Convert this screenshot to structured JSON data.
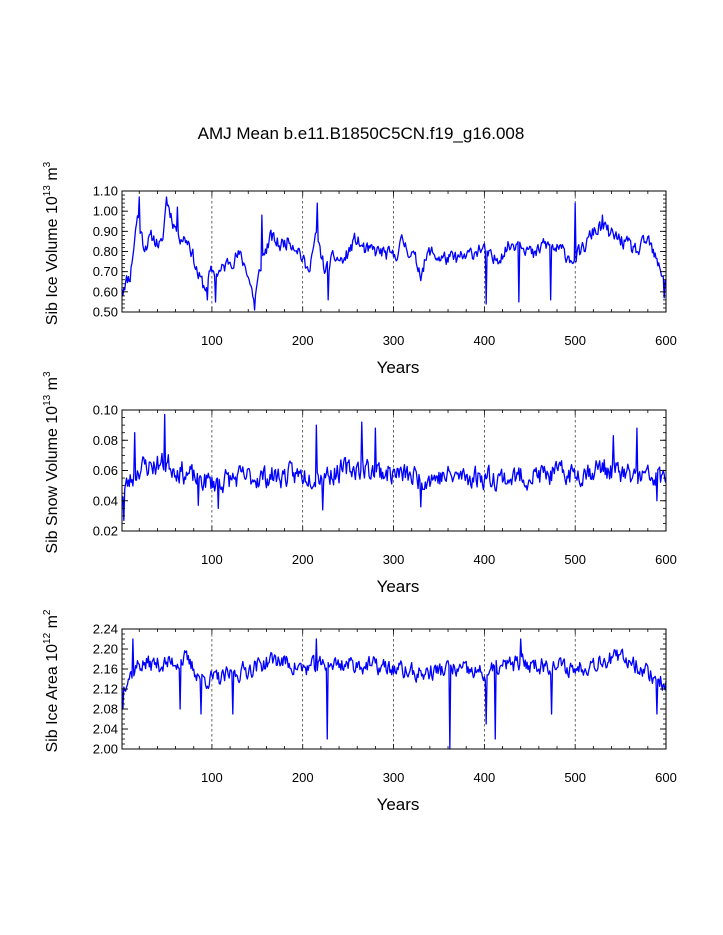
{
  "title": "AMJ Mean b.e11.B1850C5CN.f19_g16.008",
  "chart_data": [
    {
      "type": "line",
      "title": "AMJ Mean b.e11.B1850C5CN.f19_g16.008",
      "xlabel": "Years",
      "ylabel_main": "Sib Ice Volume 10",
      "ylabel_exp": "13",
      "ylabel_unit": "m",
      "ylabel_unit_exp": "3",
      "xlim": [
        1,
        600
      ],
      "ylim": [
        0.5,
        1.1
      ],
      "x_ticks": [
        100,
        200,
        300,
        400,
        500,
        600
      ],
      "y_ticks": [
        0.5,
        0.6,
        0.7,
        0.8,
        0.9,
        1.0,
        1.1
      ],
      "y_tick_labels": [
        "0.50",
        "0.60",
        "0.70",
        "0.80",
        "0.90",
        "1.00",
        "1.10"
      ],
      "y_minor_step": 0.02,
      "series_name": "Sib Ice Volume",
      "color": "#0000ff",
      "anchors": [
        [
          1,
          0.63
        ],
        [
          10,
          0.68
        ],
        [
          18,
          0.98
        ],
        [
          25,
          0.83
        ],
        [
          35,
          0.87
        ],
        [
          45,
          0.82
        ],
        [
          50,
          1.06
        ],
        [
          58,
          0.94
        ],
        [
          65,
          0.88
        ],
        [
          75,
          0.85
        ],
        [
          85,
          0.68
        ],
        [
          92,
          0.62
        ],
        [
          100,
          0.7
        ],
        [
          110,
          0.7
        ],
        [
          120,
          0.76
        ],
        [
          130,
          0.78
        ],
        [
          138,
          0.72
        ],
        [
          147,
          0.55
        ],
        [
          155,
          0.76
        ],
        [
          165,
          0.87
        ],
        [
          175,
          0.83
        ],
        [
          185,
          0.86
        ],
        [
          195,
          0.82
        ],
        [
          205,
          0.7
        ],
        [
          215,
          0.87
        ],
        [
          225,
          0.7
        ],
        [
          235,
          0.77
        ],
        [
          245,
          0.75
        ],
        [
          258,
          0.86
        ],
        [
          270,
          0.8
        ],
        [
          285,
          0.8
        ],
        [
          300,
          0.77
        ],
        [
          310,
          0.85
        ],
        [
          320,
          0.79
        ],
        [
          330,
          0.7
        ],
        [
          340,
          0.8
        ],
        [
          350,
          0.77
        ],
        [
          365,
          0.76
        ],
        [
          380,
          0.77
        ],
        [
          395,
          0.82
        ],
        [
          410,
          0.75
        ],
        [
          425,
          0.82
        ],
        [
          440,
          0.86
        ],
        [
          455,
          0.77
        ],
        [
          465,
          0.84
        ],
        [
          475,
          0.82
        ],
        [
          485,
          0.8
        ],
        [
          500,
          0.76
        ],
        [
          510,
          0.82
        ],
        [
          520,
          0.9
        ],
        [
          530,
          0.92
        ],
        [
          540,
          0.88
        ],
        [
          550,
          0.86
        ],
        [
          560,
          0.82
        ],
        [
          570,
          0.8
        ],
        [
          580,
          0.86
        ],
        [
          590,
          0.74
        ],
        [
          600,
          0.66
        ]
      ],
      "noise_amplitude": 0.06,
      "spikes": [
        [
          2,
          0.58
        ],
        [
          20,
          1.07
        ],
        [
          50,
          1.07
        ],
        [
          62,
          1.02
        ],
        [
          95,
          0.56
        ],
        [
          104,
          0.55
        ],
        [
          147,
          0.51
        ],
        [
          155,
          0.98
        ],
        [
          216,
          1.04
        ],
        [
          228,
          0.56
        ],
        [
          402,
          0.54
        ],
        [
          438,
          0.55
        ],
        [
          473,
          0.56
        ],
        [
          500,
          1.04
        ],
        [
          530,
          0.98
        ],
        [
          598,
          0.57
        ]
      ],
      "seed": 11
    },
    {
      "type": "line",
      "xlabel": "Years",
      "ylabel_main": "Sib Snow Volume 10",
      "ylabel_exp": "13",
      "ylabel_unit": "m",
      "ylabel_unit_exp": "3",
      "xlim": [
        1,
        600
      ],
      "ylim": [
        0.02,
        0.1
      ],
      "x_ticks": [
        100,
        200,
        300,
        400,
        500,
        600
      ],
      "y_ticks": [
        0.02,
        0.04,
        0.06,
        0.08,
        0.1
      ],
      "y_tick_labels": [
        "0.02",
        "0.04",
        "0.06",
        "0.08",
        "0.10"
      ],
      "y_minor_step": 0.005,
      "series_name": "Sib Snow Volume",
      "color": "#0000ff",
      "anchors": [
        [
          1,
          0.045
        ],
        [
          20,
          0.062
        ],
        [
          50,
          0.065
        ],
        [
          80,
          0.055
        ],
        [
          100,
          0.052
        ],
        [
          130,
          0.055
        ],
        [
          160,
          0.056
        ],
        [
          200,
          0.057
        ],
        [
          230,
          0.058
        ],
        [
          260,
          0.062
        ],
        [
          300,
          0.058
        ],
        [
          330,
          0.055
        ],
        [
          360,
          0.056
        ],
        [
          400,
          0.056
        ],
        [
          430,
          0.055
        ],
        [
          460,
          0.057
        ],
        [
          500,
          0.058
        ],
        [
          530,
          0.062
        ],
        [
          560,
          0.056
        ],
        [
          600,
          0.055
        ]
      ],
      "noise_amplitude": 0.012,
      "spikes": [
        [
          3,
          0.027
        ],
        [
          15,
          0.085
        ],
        [
          48,
          0.097
        ],
        [
          85,
          0.037
        ],
        [
          107,
          0.035
        ],
        [
          215,
          0.09
        ],
        [
          222,
          0.034
        ],
        [
          265,
          0.092
        ],
        [
          280,
          0.088
        ],
        [
          330,
          0.036
        ],
        [
          542,
          0.083
        ],
        [
          568,
          0.088
        ],
        [
          590,
          0.04
        ]
      ],
      "seed": 23
    },
    {
      "type": "line",
      "xlabel": "Years",
      "ylabel_main": "Sib Ice Area 10",
      "ylabel_exp": "12",
      "ylabel_unit": "m",
      "ylabel_unit_exp": "2",
      "xlim": [
        1,
        600
      ],
      "ylim": [
        2.0,
        2.24
      ],
      "x_ticks": [
        100,
        200,
        300,
        400,
        500,
        600
      ],
      "y_ticks": [
        2.0,
        2.04,
        2.08,
        2.12,
        2.16,
        2.2,
        2.24
      ],
      "y_tick_labels": [
        "2.00",
        "2.04",
        "2.08",
        "2.12",
        "2.16",
        "2.20",
        "2.24"
      ],
      "y_minor_step": 0.01,
      "series_name": "Sib Ice Area",
      "color": "#0000ff",
      "anchors": [
        [
          1,
          2.13
        ],
        [
          20,
          2.17
        ],
        [
          50,
          2.17
        ],
        [
          70,
          2.18
        ],
        [
          90,
          2.14
        ],
        [
          110,
          2.14
        ],
        [
          140,
          2.16
        ],
        [
          170,
          2.18
        ],
        [
          200,
          2.16
        ],
        [
          230,
          2.17
        ],
        [
          260,
          2.17
        ],
        [
          300,
          2.16
        ],
        [
          330,
          2.15
        ],
        [
          360,
          2.16
        ],
        [
          400,
          2.15
        ],
        [
          430,
          2.17
        ],
        [
          460,
          2.17
        ],
        [
          500,
          2.16
        ],
        [
          530,
          2.18
        ],
        [
          560,
          2.18
        ],
        [
          590,
          2.14
        ],
        [
          600,
          2.13
        ]
      ],
      "noise_amplitude": 0.028,
      "spikes": [
        [
          2,
          2.08
        ],
        [
          13,
          2.22
        ],
        [
          65,
          2.08
        ],
        [
          88,
          2.07
        ],
        [
          123,
          2.07
        ],
        [
          215,
          2.22
        ],
        [
          227,
          2.02
        ],
        [
          362,
          2.0
        ],
        [
          402,
          2.05
        ],
        [
          412,
          2.02
        ],
        [
          440,
          2.22
        ],
        [
          474,
          2.07
        ],
        [
          590,
          2.07
        ]
      ],
      "seed": 37
    }
  ]
}
